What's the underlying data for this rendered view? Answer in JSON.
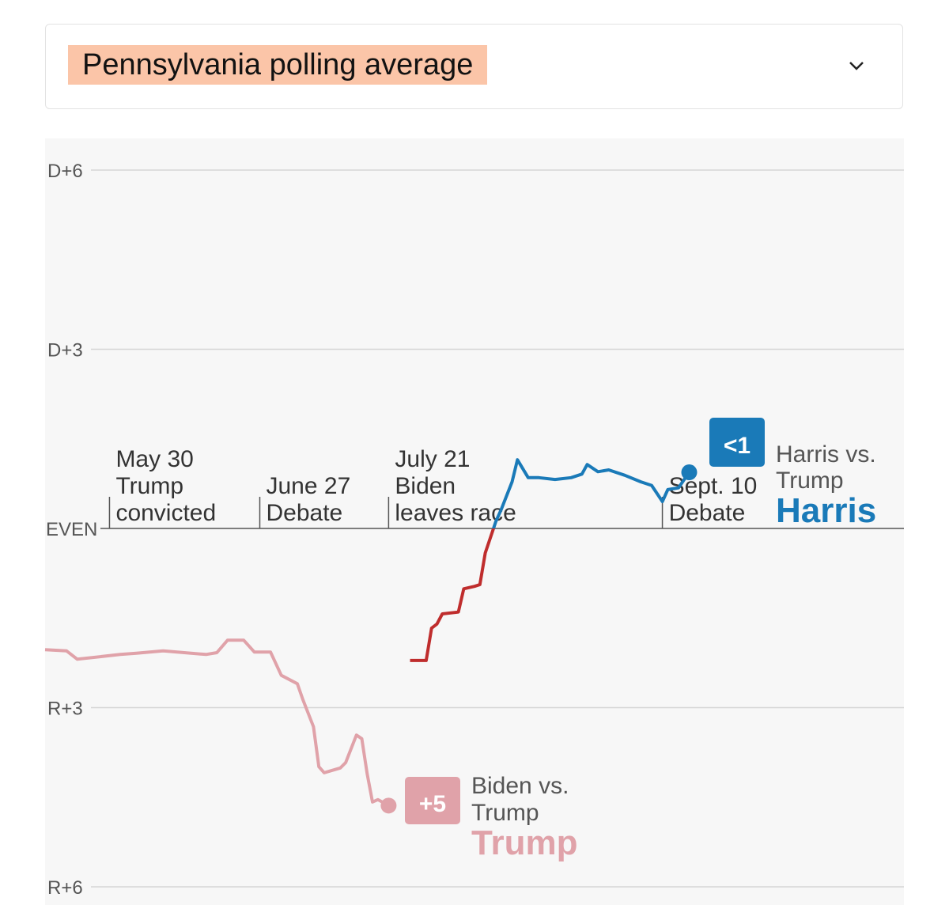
{
  "dropdown": {
    "title": "Pennsylvania polling average",
    "icon": "chevron-down-icon"
  },
  "colors": {
    "harris": "#1a7ab8",
    "trump_harris_era": "#bf2d2d",
    "trump_biden_era": "#e0a2a9",
    "background": "#f7f7f7",
    "highlight": "#fbc5a8"
  },
  "chart_data": {
    "type": "line",
    "title": "Pennsylvania polling average",
    "xlim": [
      "2024-05-18",
      "2024-10-25"
    ],
    "ylim": [
      -6,
      6
    ],
    "yticks": [
      {
        "value": 6,
        "label": "D+6"
      },
      {
        "value": 3,
        "label": "D+3"
      },
      {
        "value": 0,
        "label": "EVEN"
      },
      {
        "value": -3,
        "label": "R+3"
      },
      {
        "value": -6,
        "label": "R+6"
      }
    ],
    "grid": true,
    "events": [
      {
        "date": "2024-05-30",
        "lines": [
          "May 30",
          "Trump",
          "convicted"
        ]
      },
      {
        "date": "2024-06-27",
        "lines": [
          "June 27",
          "Debate"
        ]
      },
      {
        "date": "2024-07-21",
        "lines": [
          "July 21",
          "Biden",
          "leaves race"
        ]
      },
      {
        "date": "2024-09-10",
        "lines": [
          "Sept. 10",
          "Debate"
        ]
      }
    ],
    "series": [
      {
        "name": "Biden vs. Trump",
        "leader": "Trump",
        "final_margin_label": "+5",
        "x": [
          "2024-05-18",
          "2024-05-22",
          "2024-05-24",
          "2024-06-01",
          "2024-06-04",
          "2024-06-09",
          "2024-06-17",
          "2024-06-19",
          "2024-06-21",
          "2024-06-24",
          "2024-06-26",
          "2024-06-29",
          "2024-07-01",
          "2024-07-04",
          "2024-07-05",
          "2024-07-07",
          "2024-07-08",
          "2024-07-09",
          "2024-07-12",
          "2024-07-13",
          "2024-07-15",
          "2024-07-16",
          "2024-07-17",
          "2024-07-18",
          "2024-07-19",
          "2024-07-21"
        ],
        "y": [
          -2.03,
          -2.05,
          -2.19,
          -2.11,
          -2.09,
          -2.05,
          -2.11,
          -2.08,
          -1.87,
          -1.87,
          -2.07,
          -2.07,
          -2.46,
          -2.6,
          -2.86,
          -3.32,
          -3.99,
          -4.09,
          -4.01,
          -3.92,
          -3.46,
          -3.52,
          -4.11,
          -4.58,
          -4.54,
          -4.64
        ]
      },
      {
        "name": "Harris vs. Trump",
        "leader": "Harris",
        "final_margin_label": "<1",
        "x": [
          "2024-07-25",
          "2024-07-28",
          "2024-07-29",
          "2024-07-30",
          "2024-07-31",
          "2024-08-03",
          "2024-08-04",
          "2024-08-06",
          "2024-08-07",
          "2024-08-08",
          "2024-08-10",
          "2024-08-11",
          "2024-08-13",
          "2024-08-14",
          "2024-08-16",
          "2024-08-18",
          "2024-08-21",
          "2024-08-24",
          "2024-08-26",
          "2024-08-27",
          "2024-08-29",
          "2024-08-31",
          "2024-09-03",
          "2024-09-06",
          "2024-09-08",
          "2024-09-10",
          "2024-09-11",
          "2024-09-13",
          "2024-09-15"
        ],
        "y": [
          -2.21,
          -2.21,
          -1.67,
          -1.6,
          -1.43,
          -1.4,
          -1.01,
          -0.97,
          -0.94,
          -0.41,
          0.12,
          0.32,
          0.78,
          1.15,
          0.85,
          0.85,
          0.82,
          0.85,
          0.91,
          1.07,
          0.95,
          0.98,
          0.89,
          0.78,
          0.72,
          0.45,
          0.65,
          0.68,
          0.94
        ]
      }
    ]
  }
}
